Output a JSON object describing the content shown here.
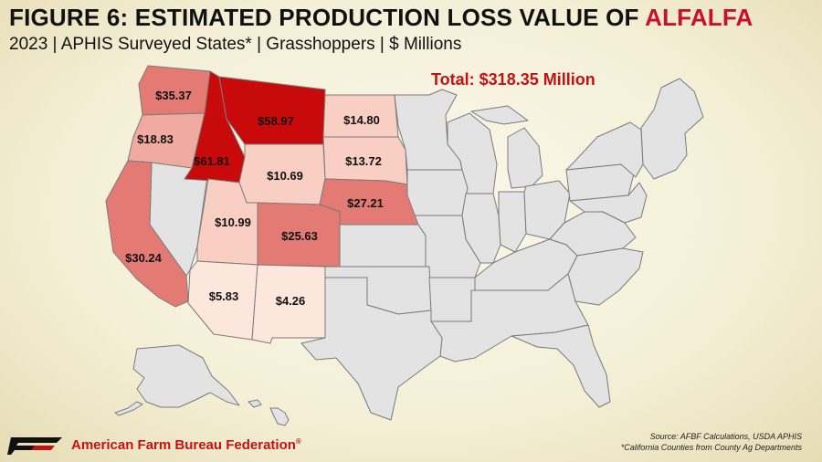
{
  "header": {
    "title_main": "FIGURE 6: ESTIMATED PRODUCTION LOSS VALUE OF ",
    "title_highlight": "ALFALFA",
    "subtitle": "2023 | APHIS Surveyed States* | Grasshoppers | $ Millions"
  },
  "total_label": "Total: $318.35 Million",
  "colors": {
    "darkest": "#c90a0a",
    "dark": "#e37b74",
    "medium": "#f0aaa0",
    "light": "#f8cfc2",
    "lightest": "#fde6dc",
    "not_surveyed": "#e3e3e3",
    "border": "#7a7a7a",
    "accent_text": "#c41214"
  },
  "states": [
    {
      "name": "Washington",
      "value": "$35.37"
    },
    {
      "name": "Oregon",
      "value": "$18.83"
    },
    {
      "name": "Idaho",
      "value": "$61.81"
    },
    {
      "name": "Montana",
      "value": "$58.97"
    },
    {
      "name": "North Dakota",
      "value": "$14.80"
    },
    {
      "name": "South Dakota",
      "value": "$13.72"
    },
    {
      "name": "Wyoming",
      "value": "$10.69"
    },
    {
      "name": "Nebraska",
      "value": "$27.21"
    },
    {
      "name": "Utah",
      "value": "$10.99"
    },
    {
      "name": "Colorado",
      "value": "$25.63"
    },
    {
      "name": "California",
      "value": "$30.24"
    },
    {
      "name": "Arizona",
      "value": "$5.83"
    },
    {
      "name": "New Mexico",
      "value": "$4.26"
    }
  ],
  "footer": {
    "logo_icon": "afbf-logo-icon",
    "organization": "American Farm Bureau Federation",
    "trademark": "®",
    "source": "Source: AFBF Calculations, USDA APHIS",
    "note": "*California Counties from County Ag Departments"
  }
}
